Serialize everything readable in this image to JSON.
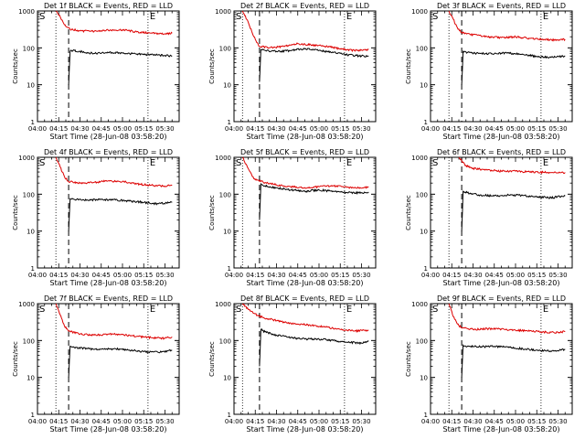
{
  "colors": {
    "events": "#000000",
    "lld": "#dd0000",
    "axis": "#000000"
  },
  "chart_data": [
    {
      "type": "line",
      "title": "Det 1f BLACK = Events, RED = LLD",
      "xlabel": "Start Time (28-Jun-08 03:58:20)",
      "ylabel": "Counts/sec",
      "xticks": [
        "04:00",
        "04:15",
        "04:30",
        "04:45",
        "05:00",
        "05:15",
        "05:30"
      ],
      "yticks": [
        "1",
        "10",
        "100",
        "1000"
      ],
      "ylim": [
        1,
        1000
      ],
      "yscale": "log",
      "markers": {
        "start_label": "S",
        "end_label": "E",
        "start_dotted": "04:13",
        "dashed": "04:22",
        "end_dotted": "05:18"
      },
      "series": [
        {
          "name": "LLD",
          "x": [
            "04:13",
            "04:16",
            "04:18",
            "04:20",
            "04:23",
            "04:30",
            "04:40",
            "04:50",
            "05:00",
            "05:10",
            "05:20",
            "05:30",
            "05:35"
          ],
          "y": [
            1000,
            700,
            500,
            380,
            320,
            290,
            280,
            300,
            310,
            270,
            250,
            240,
            250
          ]
        },
        {
          "name": "Events",
          "x": [
            "04:22",
            "04:23",
            "04:25",
            "04:30",
            "04:40",
            "04:50",
            "05:00",
            "05:10",
            "05:20",
            "05:30",
            "05:35"
          ],
          "y": [
            10,
            80,
            85,
            80,
            70,
            75,
            72,
            68,
            65,
            62,
            60
          ]
        }
      ]
    },
    {
      "type": "line",
      "title": "Det 2f BLACK = Events, RED = LLD",
      "xlabel": "Start Time (28-Jun-08 03:58:20)",
      "ylabel": "Counts/sec",
      "xticks": [
        "04:00",
        "04:15",
        "04:30",
        "04:45",
        "05:00",
        "05:15",
        "05:30"
      ],
      "yticks": [
        "1",
        "10",
        "100",
        "1000"
      ],
      "ylim": [
        1,
        1000
      ],
      "yscale": "log",
      "markers": {
        "start_label": "S",
        "end_label": "E",
        "start_dotted": "04:06",
        "dashed": "04:18",
        "end_dotted": "05:18"
      },
      "series": [
        {
          "name": "LLD",
          "x": [
            "04:06",
            "04:10",
            "04:13",
            "04:16",
            "04:18",
            "04:25",
            "04:35",
            "04:45",
            "04:55",
            "05:05",
            "05:15",
            "05:25",
            "05:35"
          ],
          "y": [
            1000,
            500,
            250,
            140,
            110,
            100,
            110,
            130,
            120,
            110,
            95,
            85,
            90
          ]
        },
        {
          "name": "Events",
          "x": [
            "04:18",
            "04:19",
            "04:22",
            "04:30",
            "04:40",
            "04:50",
            "05:00",
            "05:10",
            "05:20",
            "05:30",
            "05:35"
          ],
          "y": [
            12,
            90,
            85,
            80,
            85,
            95,
            85,
            75,
            65,
            60,
            60
          ]
        }
      ]
    },
    {
      "type": "line",
      "title": "Det 3f BLACK = Events, RED = LLD",
      "xlabel": "Start Time (28-Jun-08 03:58:20)",
      "ylabel": "Counts/sec",
      "xticks": [
        "04:00",
        "04:15",
        "04:30",
        "04:45",
        "05:00",
        "05:15",
        "05:30"
      ],
      "yticks": [
        "1",
        "10",
        "100",
        "1000"
      ],
      "ylim": [
        1,
        1000
      ],
      "yscale": "log",
      "markers": {
        "start_label": "S",
        "end_label": "E",
        "start_dotted": "04:13",
        "dashed": "04:22",
        "end_dotted": "05:18"
      },
      "series": [
        {
          "name": "LLD",
          "x": [
            "04:13",
            "04:16",
            "04:19",
            "04:22",
            "04:28",
            "04:40",
            "04:50",
            "05:00",
            "05:10",
            "05:20",
            "05:30",
            "05:35"
          ],
          "y": [
            1000,
            600,
            350,
            260,
            230,
            200,
            190,
            200,
            180,
            170,
            160,
            170
          ]
        },
        {
          "name": "Events",
          "x": [
            "04:22",
            "04:23",
            "04:26",
            "04:35",
            "04:45",
            "04:55",
            "05:05",
            "05:15",
            "05:25",
            "05:35"
          ],
          "y": [
            10,
            80,
            75,
            70,
            70,
            72,
            68,
            58,
            55,
            60
          ]
        }
      ]
    },
    {
      "type": "line",
      "title": "Det 4f BLACK = Events, RED = LLD",
      "xlabel": "Start Time (28-Jun-08 03:58:20)",
      "ylabel": "Counts/sec",
      "xticks": [
        "04:00",
        "04:15",
        "04:30",
        "04:45",
        "05:00",
        "05:15",
        "05:30"
      ],
      "yticks": [
        "1",
        "10",
        "100",
        "1000"
      ],
      "ylim": [
        1,
        1000
      ],
      "yscale": "log",
      "markers": {
        "start_label": "S",
        "end_label": "E",
        "start_dotted": "04:13",
        "dashed": "04:22",
        "end_dotted": "05:18"
      },
      "series": [
        {
          "name": "LLD",
          "x": [
            "04:13",
            "04:16",
            "04:19",
            "04:22",
            "04:30",
            "04:40",
            "04:50",
            "05:00",
            "05:10",
            "05:20",
            "05:30",
            "05:35"
          ],
          "y": [
            1000,
            550,
            300,
            220,
            200,
            210,
            230,
            220,
            190,
            175,
            165,
            175
          ]
        },
        {
          "name": "Events",
          "x": [
            "04:22",
            "04:23",
            "04:26",
            "04:35",
            "04:45",
            "04:55",
            "05:05",
            "05:15",
            "05:25",
            "05:35"
          ],
          "y": [
            10,
            75,
            72,
            70,
            72,
            70,
            65,
            60,
            55,
            60
          ]
        }
      ]
    },
    {
      "type": "line",
      "title": "Det 5f BLACK = Events, RED = LLD",
      "xlabel": "Start Time (28-Jun-08 03:58:20)",
      "ylabel": "Counts/sec",
      "xticks": [
        "04:00",
        "04:15",
        "04:30",
        "04:45",
        "05:00",
        "05:15",
        "05:30"
      ],
      "yticks": [
        "1",
        "10",
        "100",
        "1000"
      ],
      "ylim": [
        1,
        1000
      ],
      "yscale": "log",
      "markers": {
        "start_label": "S",
        "end_label": "E",
        "start_dotted": "04:06",
        "dashed": "04:18",
        "end_dotted": "05:18"
      },
      "series": [
        {
          "name": "LLD",
          "x": [
            "04:06",
            "04:10",
            "04:13",
            "04:16",
            "04:19",
            "04:30",
            "04:40",
            "04:50",
            "05:00",
            "05:10",
            "05:20",
            "05:30",
            "05:35"
          ],
          "y": [
            1000,
            500,
            300,
            240,
            220,
            180,
            160,
            150,
            160,
            170,
            155,
            145,
            160
          ]
        },
        {
          "name": "Events",
          "x": [
            "04:18",
            "04:19",
            "04:22",
            "04:30",
            "04:40",
            "04:50",
            "05:00",
            "05:10",
            "05:20",
            "05:30",
            "05:35"
          ],
          "y": [
            20,
            190,
            170,
            150,
            130,
            120,
            130,
            120,
            110,
            110,
            115
          ]
        }
      ]
    },
    {
      "type": "line",
      "title": "Det 6f BLACK = Events, RED = LLD",
      "xlabel": "Start Time (28-Jun-08 03:58:20)",
      "ylabel": "Counts/sec",
      "xticks": [
        "04:00",
        "04:15",
        "04:30",
        "04:45",
        "05:00",
        "05:15",
        "05:30"
      ],
      "yticks": [
        "1",
        "10",
        "100",
        "1000"
      ],
      "ylim": [
        1,
        1000
      ],
      "yscale": "log",
      "markers": {
        "start_label": "S",
        "end_label": "E",
        "start_dotted": "04:13",
        "dashed": "04:22",
        "end_dotted": "05:18"
      },
      "series": [
        {
          "name": "LLD",
          "x": [
            "04:20",
            "04:22",
            "04:25",
            "04:30",
            "04:40",
            "04:50",
            "05:00",
            "05:10",
            "05:20",
            "05:30",
            "05:35"
          ],
          "y": [
            1000,
            800,
            600,
            500,
            450,
            420,
            420,
            400,
            390,
            380,
            390
          ]
        },
        {
          "name": "Events",
          "x": [
            "04:22",
            "04:23",
            "04:26",
            "04:35",
            "04:45",
            "04:55",
            "05:05",
            "05:15",
            "05:25",
            "05:35"
          ],
          "y": [
            10,
            120,
            110,
            95,
            90,
            95,
            92,
            85,
            80,
            90
          ]
        }
      ]
    },
    {
      "type": "line",
      "title": "Det 7f BLACK = Events, RED = LLD",
      "xlabel": "Start Time (28-Jun-08 03:58:20)",
      "ylabel": "Counts/sec",
      "xticks": [
        "04:00",
        "04:15",
        "04:30",
        "04:45",
        "05:00",
        "05:15",
        "05:30"
      ],
      "yticks": [
        "1",
        "10",
        "100",
        "1000"
      ],
      "ylim": [
        1,
        1000
      ],
      "yscale": "log",
      "markers": {
        "start_label": "S",
        "end_label": "E",
        "start_dotted": "04:13",
        "dashed": "04:22",
        "end_dotted": "05:18"
      },
      "series": [
        {
          "name": "LLD",
          "x": [
            "04:13",
            "04:16",
            "04:19",
            "04:22",
            "04:30",
            "04:40",
            "04:50",
            "05:00",
            "05:10",
            "05:20",
            "05:30",
            "05:35"
          ],
          "y": [
            1000,
            500,
            250,
            180,
            150,
            140,
            150,
            145,
            130,
            120,
            115,
            125
          ]
        },
        {
          "name": "Events",
          "x": [
            "04:22",
            "04:23",
            "04:26",
            "04:35",
            "04:45",
            "04:55",
            "05:05",
            "05:15",
            "05:25",
            "05:35"
          ],
          "y": [
            10,
            70,
            65,
            60,
            58,
            60,
            55,
            50,
            48,
            55
          ]
        }
      ]
    },
    {
      "type": "line",
      "title": "Det 8f BLACK = Events, RED = LLD",
      "xlabel": "Start Time (28-Jun-08 03:58:20)",
      "ylabel": "Counts/sec",
      "xticks": [
        "04:00",
        "04:15",
        "04:30",
        "04:45",
        "05:00",
        "05:15",
        "05:30"
      ],
      "yticks": [
        "1",
        "10",
        "100",
        "1000"
      ],
      "ylim": [
        1,
        1000
      ],
      "yscale": "log",
      "markers": {
        "start_label": "S",
        "end_label": "E",
        "start_dotted": "04:06",
        "dashed": "04:18",
        "end_dotted": "05:18"
      },
      "series": [
        {
          "name": "LLD",
          "x": [
            "04:06",
            "04:10",
            "04:14",
            "04:18",
            "04:25",
            "04:35",
            "04:45",
            "04:55",
            "05:05",
            "05:15",
            "05:25",
            "05:35"
          ],
          "y": [
            1000,
            700,
            550,
            450,
            380,
            320,
            280,
            260,
            230,
            200,
            180,
            190
          ]
        },
        {
          "name": "Events",
          "x": [
            "04:18",
            "04:19",
            "04:22",
            "04:30",
            "04:40",
            "04:50",
            "05:00",
            "05:10",
            "05:20",
            "05:30",
            "05:35"
          ],
          "y": [
            20,
            200,
            170,
            140,
            120,
            110,
            110,
            100,
            90,
            85,
            95
          ]
        }
      ]
    },
    {
      "type": "line",
      "title": "Det 9f BLACK = Events, RED = LLD",
      "xlabel": "Start Time (28-Jun-08 03:58:20)",
      "ylabel": "Counts/sec",
      "xticks": [
        "04:00",
        "04:15",
        "04:30",
        "04:45",
        "05:00",
        "05:15",
        "05:30"
      ],
      "yticks": [
        "1",
        "10",
        "100",
        "1000"
      ],
      "ylim": [
        1,
        1000
      ],
      "yscale": "log",
      "markers": {
        "start_label": "S",
        "end_label": "E",
        "start_dotted": "04:13",
        "dashed": "04:22",
        "end_dotted": "05:18"
      },
      "series": [
        {
          "name": "LLD",
          "x": [
            "04:13",
            "04:16",
            "04:19",
            "04:22",
            "04:30",
            "04:40",
            "04:50",
            "05:00",
            "05:10",
            "05:20",
            "05:30",
            "05:35"
          ],
          "y": [
            1000,
            450,
            280,
            220,
            200,
            210,
            205,
            190,
            180,
            170,
            165,
            175
          ]
        },
        {
          "name": "Events",
          "x": [
            "04:22",
            "04:23",
            "04:26",
            "04:35",
            "04:45",
            "04:55",
            "05:05",
            "05:15",
            "05:25",
            "05:35"
          ],
          "y": [
            10,
            75,
            70,
            68,
            70,
            65,
            60,
            55,
            52,
            58
          ]
        }
      ]
    }
  ]
}
